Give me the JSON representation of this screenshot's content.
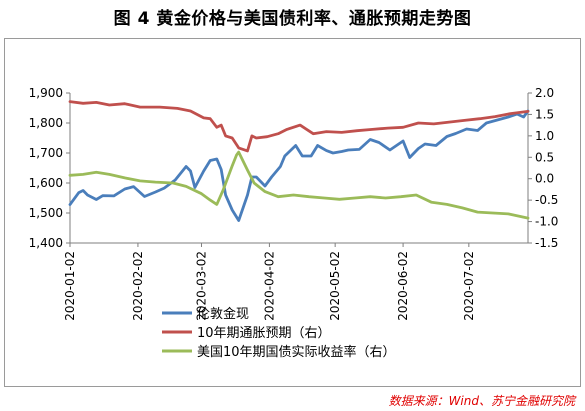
{
  "title": "图 4  黄金价格与美国债利率、通胀预期走势图",
  "source": "数据来源：Wind、苏宁金融研究院",
  "chart_data": {
    "type": "line",
    "title": "图 4  黄金价格与美国债利率、通胀预期走势图",
    "x_ticks": [
      "2020-01-02",
      "2020-02-02",
      "2020-03-02",
      "2020-04-02",
      "2020-05-02",
      "2020-06-02",
      "2020-07-02"
    ],
    "x_range": [
      "2020-01-02",
      "2020-07-29"
    ],
    "y_left": {
      "range": [
        1400,
        1900
      ],
      "ticks": [
        "1,400",
        "1,500",
        "1,600",
        "1,700",
        "1,800",
        "1,900"
      ]
    },
    "y_right": {
      "range": [
        -1.5,
        2.0
      ],
      "ticks": [
        "-1.5",
        "-1.0",
        "-0.5",
        "0.0",
        "0.5",
        "1.0",
        "1.5",
        "2.0"
      ]
    },
    "grid": false,
    "legend_position": "bottom",
    "series": [
      {
        "name": "伦敦金现",
        "axis": "left",
        "color": "#4a7ebb",
        "points": [
          [
            "2020-01-02",
            1528
          ],
          [
            "2020-01-06",
            1568
          ],
          [
            "2020-01-08",
            1575
          ],
          [
            "2020-01-10",
            1560
          ],
          [
            "2020-01-14",
            1545
          ],
          [
            "2020-01-17",
            1558
          ],
          [
            "2020-01-22",
            1557
          ],
          [
            "2020-01-27",
            1580
          ],
          [
            "2020-01-31",
            1588
          ],
          [
            "2020-02-05",
            1555
          ],
          [
            "2020-02-10",
            1570
          ],
          [
            "2020-02-14",
            1583
          ],
          [
            "2020-02-19",
            1610
          ],
          [
            "2020-02-24",
            1655
          ],
          [
            "2020-02-26",
            1640
          ],
          [
            "2020-02-28",
            1585
          ],
          [
            "2020-03-03",
            1640
          ],
          [
            "2020-03-06",
            1675
          ],
          [
            "2020-03-09",
            1680
          ],
          [
            "2020-03-11",
            1645
          ],
          [
            "2020-03-13",
            1560
          ],
          [
            "2020-03-16",
            1510
          ],
          [
            "2020-03-19",
            1475
          ],
          [
            "2020-03-23",
            1560
          ],
          [
            "2020-03-25",
            1620
          ],
          [
            "2020-03-27",
            1620
          ],
          [
            "2020-03-31",
            1590
          ],
          [
            "2020-04-03",
            1620
          ],
          [
            "2020-04-07",
            1655
          ],
          [
            "2020-04-09",
            1690
          ],
          [
            "2020-04-14",
            1725
          ],
          [
            "2020-04-17",
            1690
          ],
          [
            "2020-04-21",
            1690
          ],
          [
            "2020-04-24",
            1725
          ],
          [
            "2020-04-28",
            1708
          ],
          [
            "2020-05-01",
            1700
          ],
          [
            "2020-05-05",
            1705
          ],
          [
            "2020-05-08",
            1710
          ],
          [
            "2020-05-13",
            1712
          ],
          [
            "2020-05-18",
            1745
          ],
          [
            "2020-05-22",
            1735
          ],
          [
            "2020-05-27",
            1710
          ],
          [
            "2020-06-02",
            1740
          ],
          [
            "2020-06-05",
            1685
          ],
          [
            "2020-06-09",
            1715
          ],
          [
            "2020-06-12",
            1730
          ],
          [
            "2020-06-17",
            1725
          ],
          [
            "2020-06-22",
            1755
          ],
          [
            "2020-06-26",
            1765
          ],
          [
            "2020-07-01",
            1780
          ],
          [
            "2020-07-06",
            1775
          ],
          [
            "2020-07-10",
            1800
          ],
          [
            "2020-07-15",
            1810
          ],
          [
            "2020-07-20",
            1820
          ],
          [
            "2020-07-24",
            1830
          ],
          [
            "2020-07-27",
            1820
          ],
          [
            "2020-07-29",
            1840
          ]
        ]
      },
      {
        "name": "10年期通胀预期（右）",
        "axis": "right",
        "color": "#c0504d",
        "points": [
          [
            "2020-01-02",
            1.8
          ],
          [
            "2020-01-08",
            1.76
          ],
          [
            "2020-01-14",
            1.78
          ],
          [
            "2020-01-20",
            1.72
          ],
          [
            "2020-01-27",
            1.75
          ],
          [
            "2020-02-03",
            1.67
          ],
          [
            "2020-02-12",
            1.67
          ],
          [
            "2020-02-20",
            1.64
          ],
          [
            "2020-02-26",
            1.58
          ],
          [
            "2020-03-03",
            1.42
          ],
          [
            "2020-03-06",
            1.4
          ],
          [
            "2020-03-09",
            1.2
          ],
          [
            "2020-03-11",
            1.25
          ],
          [
            "2020-03-13",
            1.0
          ],
          [
            "2020-03-16",
            0.95
          ],
          [
            "2020-03-19",
            0.72
          ],
          [
            "2020-03-23",
            0.65
          ],
          [
            "2020-03-25",
            1.0
          ],
          [
            "2020-03-27",
            0.95
          ],
          [
            "2020-04-01",
            0.98
          ],
          [
            "2020-04-06",
            1.05
          ],
          [
            "2020-04-10",
            1.15
          ],
          [
            "2020-04-16",
            1.25
          ],
          [
            "2020-04-22",
            1.05
          ],
          [
            "2020-04-28",
            1.1
          ],
          [
            "2020-05-05",
            1.08
          ],
          [
            "2020-05-12",
            1.12
          ],
          [
            "2020-05-19",
            1.15
          ],
          [
            "2020-05-26",
            1.18
          ],
          [
            "2020-06-02",
            1.2
          ],
          [
            "2020-06-09",
            1.3
          ],
          [
            "2020-06-16",
            1.28
          ],
          [
            "2020-06-23",
            1.32
          ],
          [
            "2020-06-30",
            1.36
          ],
          [
            "2020-07-07",
            1.4
          ],
          [
            "2020-07-14",
            1.45
          ],
          [
            "2020-07-21",
            1.52
          ],
          [
            "2020-07-29",
            1.57
          ]
        ]
      },
      {
        "name": "美国10年期国债实际收益率（右）",
        "axis": "right",
        "color": "#9bbb59",
        "points": [
          [
            "2020-01-02",
            0.08
          ],
          [
            "2020-01-08",
            0.1
          ],
          [
            "2020-01-14",
            0.15
          ],
          [
            "2020-01-20",
            0.1
          ],
          [
            "2020-01-27",
            0.02
          ],
          [
            "2020-02-03",
            -0.05
          ],
          [
            "2020-02-10",
            -0.08
          ],
          [
            "2020-02-18",
            -0.1
          ],
          [
            "2020-02-24",
            -0.18
          ],
          [
            "2020-03-02",
            -0.35
          ],
          [
            "2020-03-06",
            -0.5
          ],
          [
            "2020-03-09",
            -0.6
          ],
          [
            "2020-03-12",
            -0.25
          ],
          [
            "2020-03-16",
            0.3
          ],
          [
            "2020-03-18",
            0.55
          ],
          [
            "2020-03-19",
            0.62
          ],
          [
            "2020-03-23",
            0.2
          ],
          [
            "2020-03-26",
            -0.1
          ],
          [
            "2020-03-31",
            -0.3
          ],
          [
            "2020-04-06",
            -0.42
          ],
          [
            "2020-04-13",
            -0.38
          ],
          [
            "2020-04-20",
            -0.42
          ],
          [
            "2020-04-27",
            -0.45
          ],
          [
            "2020-05-04",
            -0.48
          ],
          [
            "2020-05-11",
            -0.45
          ],
          [
            "2020-05-18",
            -0.42
          ],
          [
            "2020-05-25",
            -0.45
          ],
          [
            "2020-06-01",
            -0.42
          ],
          [
            "2020-06-08",
            -0.38
          ],
          [
            "2020-06-15",
            -0.55
          ],
          [
            "2020-06-22",
            -0.6
          ],
          [
            "2020-06-29",
            -0.68
          ],
          [
            "2020-07-06",
            -0.78
          ],
          [
            "2020-07-13",
            -0.8
          ],
          [
            "2020-07-20",
            -0.82
          ],
          [
            "2020-07-29",
            -0.92
          ]
        ]
      }
    ]
  }
}
